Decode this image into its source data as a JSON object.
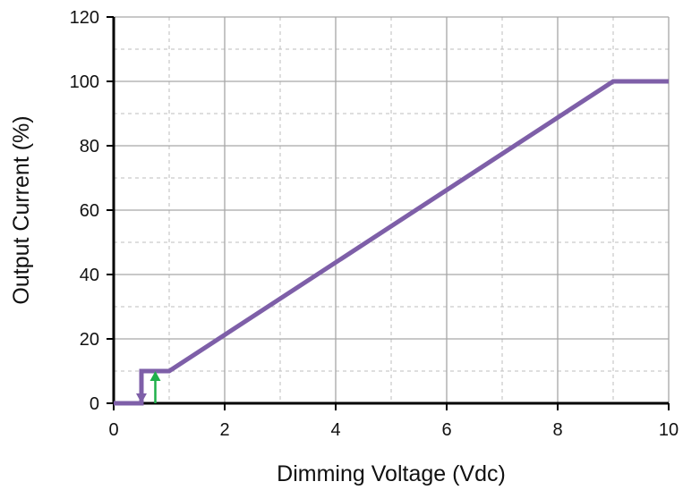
{
  "chart_data": {
    "type": "line",
    "title": "",
    "xlabel": "Dimming Voltage (Vdc)",
    "ylabel": "Output Current (%)",
    "xlim": [
      0,
      10
    ],
    "ylim": [
      0,
      120
    ],
    "x_ticks": [
      0,
      2,
      4,
      6,
      8,
      10
    ],
    "y_ticks": [
      0,
      20,
      40,
      60,
      80,
      100,
      120
    ],
    "x_tick_labels": [
      "0",
      "2",
      "4",
      "6",
      "8",
      "10"
    ],
    "y_tick_labels": [
      "0",
      "20",
      "40",
      "60",
      "80",
      "100",
      "120"
    ],
    "grid": true,
    "minor_grid_x": [
      1,
      3,
      5,
      7,
      9
    ],
    "minor_grid_y": [
      10,
      30,
      50,
      70,
      90,
      110
    ],
    "legend": "none",
    "series": [
      {
        "color": "#7e5fa8",
        "points": [
          [
            0,
            0
          ],
          [
            0.5,
            0
          ],
          [
            0.5,
            10
          ],
          [
            1,
            10
          ],
          [
            9,
            100
          ],
          [
            10,
            100
          ]
        ]
      }
    ],
    "annotations": [
      {
        "kind": "arrow",
        "direction": "down",
        "x": 0.5,
        "y_from": 10,
        "y_to": 0,
        "color": "#7e5fa8"
      },
      {
        "kind": "arrow",
        "direction": "up",
        "x": 0.75,
        "y_from": 0,
        "y_to": 10,
        "color": "#1fb04a"
      }
    ]
  }
}
